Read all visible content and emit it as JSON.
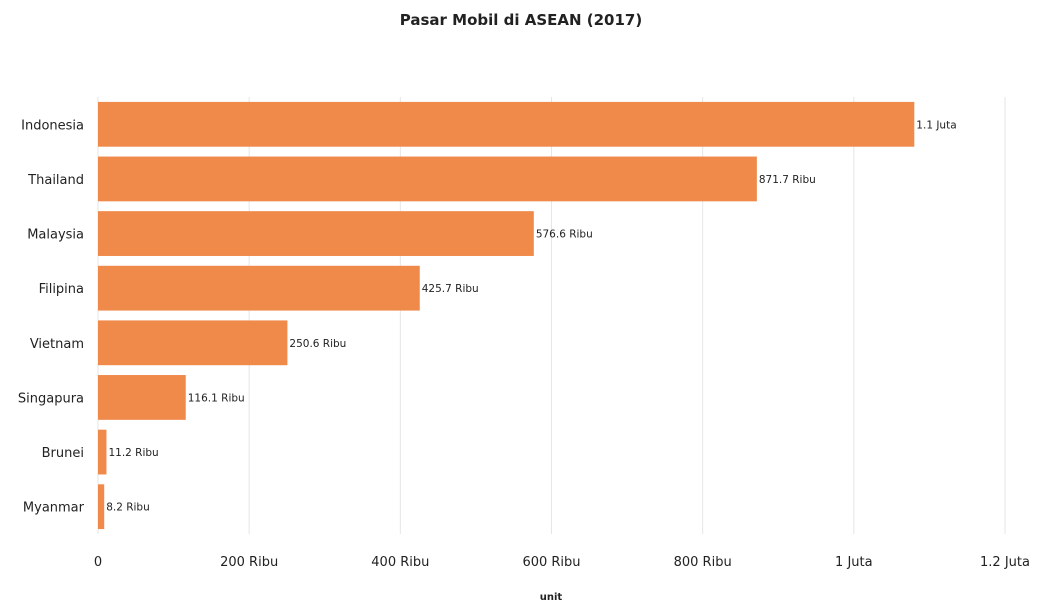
{
  "chart_data": {
    "type": "bar",
    "orientation": "horizontal",
    "title": "Pasar Mobil di ASEAN (2017)",
    "xlabel": "unit",
    "ylabel": "",
    "categories": [
      "Indonesia",
      "Thailand",
      "Malaysia",
      "Filipina",
      "Vietnam",
      "Singapura",
      "Brunei",
      "Myanmar"
    ],
    "values": [
      1080000,
      871700,
      576600,
      425700,
      250600,
      116100,
      11200,
      8200
    ],
    "data_labels": [
      "1.1 Juta",
      "871.7 Ribu",
      "576.6 Ribu",
      "425.7 Ribu",
      "250.6 Ribu",
      "116.1 Ribu",
      "11.2 Ribu",
      "8.2 Ribu"
    ],
    "xlim": [
      0,
      1200000
    ],
    "xticks": [
      0,
      200000,
      400000,
      600000,
      800000,
      1000000,
      1200000
    ],
    "xtick_labels": [
      "0",
      "200 Ribu",
      "400 Ribu",
      "600 Ribu",
      "800 Ribu",
      "1 Juta",
      "1.2 Juta"
    ],
    "grid": true,
    "legend": "none",
    "bar_color": "#f08a4b"
  }
}
